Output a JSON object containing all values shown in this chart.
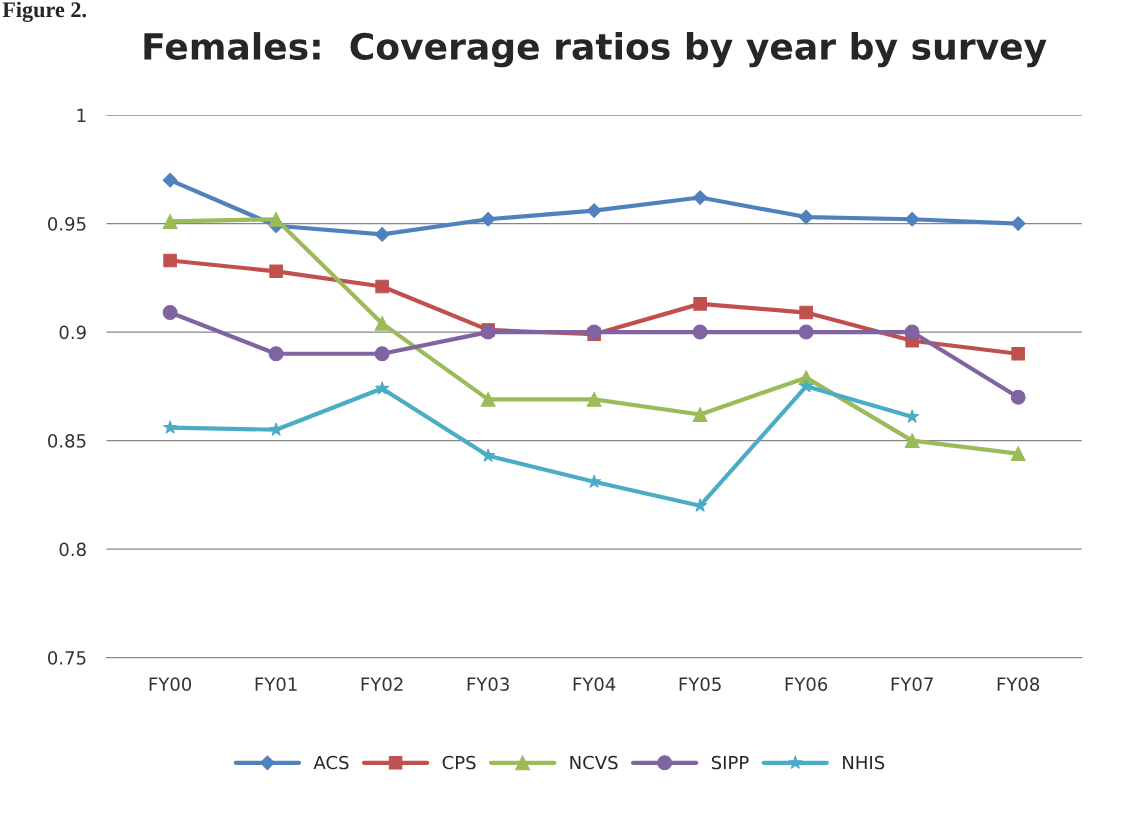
{
  "chart_data": {
    "type": "line",
    "title": "Females:  Coverage ratios by year by survey",
    "annotations": [
      "Figure 2."
    ],
    "categories": [
      "FY00",
      "FY01",
      "FY02",
      "FY03",
      "FY04",
      "FY05",
      "FY06",
      "FY07",
      "FY08"
    ],
    "series": [
      {
        "name": "ACS",
        "color": "#4f81bd",
        "marker": "diamond",
        "values": [
          0.97,
          0.949,
          0.945,
          0.952,
          0.956,
          0.962,
          0.953,
          0.952,
          0.95
        ]
      },
      {
        "name": "CPS",
        "color": "#c0504d",
        "marker": "square",
        "values": [
          0.933,
          0.928,
          0.921,
          0.901,
          0.899,
          0.913,
          0.909,
          0.896,
          0.89
        ]
      },
      {
        "name": "NCVS",
        "color": "#9bbb59",
        "marker": "triangle",
        "values": [
          0.951,
          0.952,
          0.904,
          0.869,
          0.869,
          0.862,
          0.879,
          0.85,
          0.844
        ]
      },
      {
        "name": "SIPP",
        "color": "#8064a2",
        "marker": "circle",
        "values": [
          0.909,
          0.89,
          0.89,
          0.9,
          0.9,
          0.9,
          0.9,
          0.9,
          0.87
        ]
      },
      {
        "name": "NHIS",
        "color": "#4bacc6",
        "marker": "star",
        "values": [
          0.856,
          0.855,
          0.874,
          0.843,
          0.831,
          0.82,
          0.875,
          0.861,
          null
        ]
      }
    ],
    "ylim": [
      0.75,
      1
    ],
    "yticks": [
      {
        "value": 0.75,
        "label": "0.75"
      },
      {
        "value": 0.8,
        "label": "0.8"
      },
      {
        "value": 0.85,
        "label": "0.85"
      },
      {
        "value": 0.9,
        "label": "0.9"
      },
      {
        "value": 0.95,
        "label": "0.95"
      },
      {
        "value": 1,
        "label": "1"
      }
    ],
    "grid": "y",
    "legend": "bottom",
    "line_style": "solid"
  }
}
